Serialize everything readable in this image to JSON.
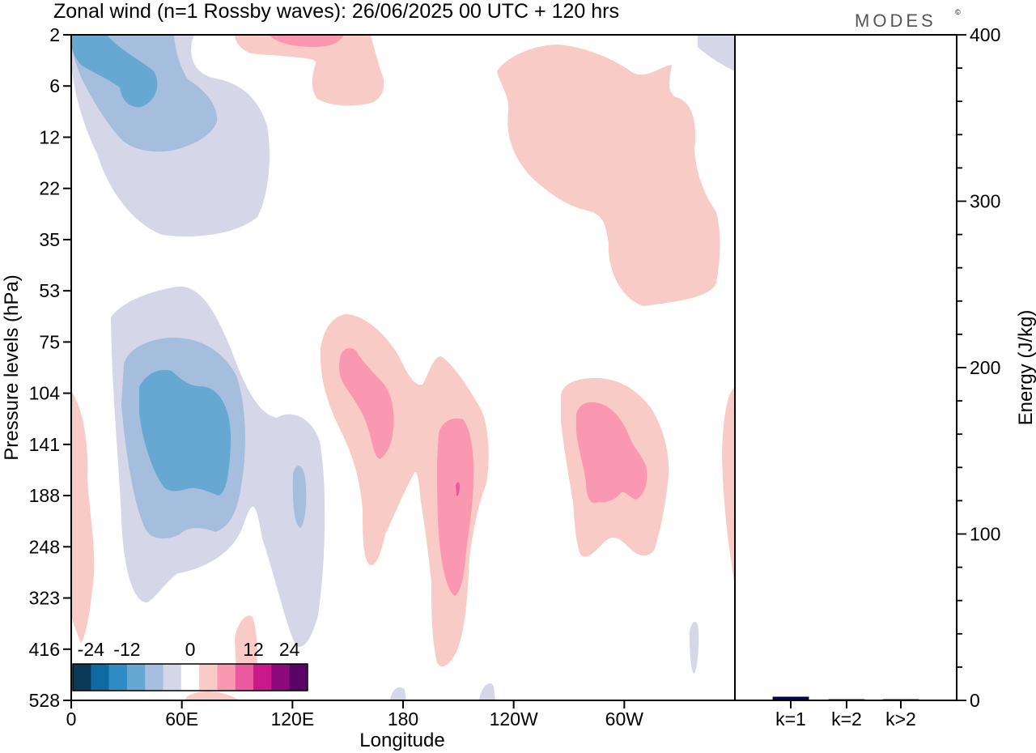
{
  "title": "Zonal wind (n=1 Rossby waves):  26/06/2025  00 UTC  + 120 hrs",
  "logo_text": "MODES",
  "logo_mark": "©",
  "chart_data": [
    {
      "type": "heatmap",
      "title": "Zonal wind (n=1 Rossby waves):  26/06/2025  00 UTC  + 120 hrs",
      "xlabel": "Longitude",
      "ylabel": "Pressure levels (hPa)",
      "x_ticks": [
        "0",
        "60E",
        "120E",
        "180",
        "120W",
        "60W"
      ],
      "x_tick_lon": [
        0,
        60,
        120,
        180,
        240,
        300
      ],
      "xlim": [
        0,
        360
      ],
      "y_ticks": [
        "2",
        "6",
        "12",
        "22",
        "35",
        "53",
        "75",
        "104",
        "141",
        "188",
        "248",
        "323",
        "416",
        "528"
      ],
      "y_reversed": true,
      "grid": false,
      "colorbar": {
        "labels": [
          "-24",
          "-12",
          "0",
          "12",
          "24"
        ],
        "levels": [
          -30,
          -24,
          -18,
          -12,
          -6,
          -3,
          3,
          6,
          12,
          18,
          24,
          30
        ],
        "colors": [
          "#0b3a58",
          "#0e6aa1",
          "#2f8cc4",
          "#67a8d2",
          "#a5bedd",
          "#d5d7e8",
          "#ffffff",
          "#f9cbc6",
          "#f998b0",
          "#ea5a9e",
          "#c9188a",
          "#8e0a7c",
          "#5a0468"
        ],
        "placement": "bottom-left"
      },
      "contours": [
        {
          "value": -12,
          "lon_range": [
            0,
            45
          ],
          "level_range": [
            "2",
            "6"
          ]
        },
        {
          "value": -12,
          "lon_range": [
            37,
            87
          ],
          "level_range": [
            "104",
            "188"
          ]
        },
        {
          "value": -6,
          "lon_range": [
            0,
            80
          ],
          "level_range": [
            "2",
            "12"
          ]
        },
        {
          "value": -6,
          "lon_range": [
            27,
            96
          ],
          "level_range": [
            "75",
            "248"
          ]
        },
        {
          "value": -3,
          "lon_range": [
            0,
            107
          ],
          "level_range": [
            "2",
            "35"
          ]
        },
        {
          "value": -3,
          "lon_range": [
            21,
            140
          ],
          "level_range": [
            "53",
            "416"
          ]
        },
        {
          "value": 6,
          "lon_range": [
            145,
            175
          ],
          "level_range": [
            "75",
            "141"
          ]
        },
        {
          "value": 6,
          "lon_range": [
            200,
            220
          ],
          "level_range": [
            "141",
            "323"
          ]
        },
        {
          "value": 6,
          "lon_range": [
            275,
            315
          ],
          "level_range": [
            "104",
            "188"
          ]
        },
        {
          "value": 12,
          "lon_range": [
            210,
            213
          ],
          "level_range": [
            "188",
            "188"
          ]
        },
        {
          "value": 3,
          "lon_range": [
            88,
            168
          ],
          "level_range": [
            "2",
            "6"
          ]
        },
        {
          "value": 3,
          "lon_range": [
            230,
            355
          ],
          "level_range": [
            "2",
            "53"
          ]
        },
        {
          "value": 3,
          "lon_range": [
            137,
            230
          ],
          "level_range": [
            "75",
            "416"
          ]
        },
        {
          "value": 3,
          "lon_range": [
            266,
            325
          ],
          "level_range": [
            "104",
            "248"
          ]
        },
        {
          "value": 3,
          "lon_range": [
            0,
            12
          ],
          "level_range": [
            "104",
            "416"
          ]
        }
      ]
    },
    {
      "type": "bar",
      "categories": [
        "k=1",
        "k=2",
        "k>2"
      ],
      "values": [
        2.0,
        0.5,
        0.5
      ],
      "ylabel": "Energy (J/kg)",
      "ylim": [
        0,
        400
      ],
      "y_ticks": [
        0,
        100,
        200,
        300,
        400
      ],
      "colors": [
        "#00007f",
        "#00007f",
        "#00007f"
      ]
    }
  ]
}
